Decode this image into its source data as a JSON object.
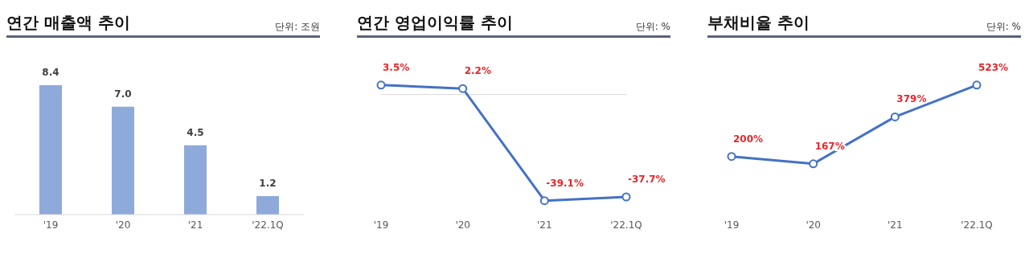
{
  "chart_data": [
    {
      "type": "bar",
      "title": "연간 매출액 추이",
      "subtitle": "단위: 조원",
      "categories": [
        "'19",
        "'20",
        "'21",
        "'22.1Q"
      ],
      "values": [
        8.4,
        7.0,
        4.5,
        1.2
      ],
      "color": "#8eaadb",
      "value_labels": [
        "8.4",
        "7.0",
        "4.5",
        "1.2"
      ]
    },
    {
      "type": "line",
      "title": "연간 영업이익률 추이",
      "subtitle": "단위: %",
      "categories": [
        "'19",
        "'20",
        "'21",
        "'22.1Q"
      ],
      "values": [
        3.5,
        2.2,
        -39.1,
        -37.7
      ],
      "color": "#4472c4",
      "marker": "circle",
      "value_labels": [
        "3.5%",
        "2.2%",
        "-39.1%",
        "-37.7%"
      ],
      "ref_lines": [
        {
          "axis": "y",
          "value": 0,
          "color": "#d9d9d9"
        }
      ]
    },
    {
      "type": "line",
      "title": "부채비율 추이",
      "subtitle": "단위: %",
      "categories": [
        "'19",
        "'20",
        "'21",
        "'22.1Q"
      ],
      "values": [
        200,
        167,
        379,
        523
      ],
      "color": "#4472c4",
      "marker": "circle",
      "value_labels": [
        "200%",
        "167%",
        "379%",
        "523%"
      ]
    }
  ]
}
